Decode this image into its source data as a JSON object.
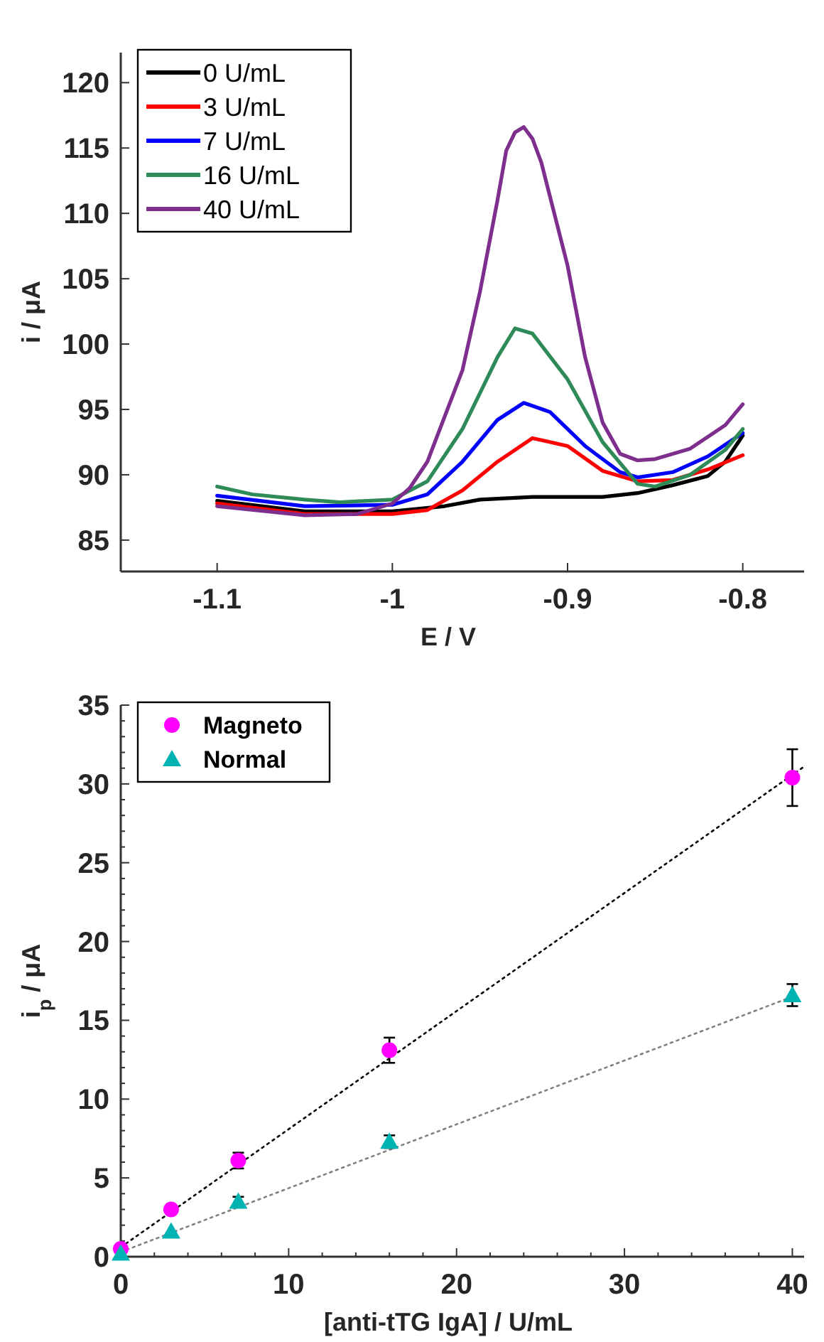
{
  "chart_data": [
    {
      "type": "line",
      "xlabel": "E / V",
      "ylabel": "i / μA",
      "xlim": [
        -1.155,
        -0.765
      ],
      "ylim": [
        82.6,
        122.3
      ],
      "xticks": [
        -1.1,
        -1,
        -0.9,
        -0.8
      ],
      "yticks": [
        85,
        90,
        95,
        100,
        105,
        110,
        115,
        120
      ],
      "legend": "top left",
      "line_style": "solid",
      "grid": false,
      "series": [
        {
          "name": "0 U/mL",
          "color": "#000000",
          "x": [
            -1.1,
            -1.05,
            -1.0,
            -0.97,
            -0.95,
            -0.92,
            -0.9,
            -0.88,
            -0.86,
            -0.84,
            -0.82,
            -0.81,
            -0.8
          ],
          "values": [
            88.0,
            87.2,
            87.2,
            87.6,
            88.1,
            88.3,
            88.3,
            88.3,
            88.6,
            89.2,
            89.9,
            91.0,
            93.0
          ]
        },
        {
          "name": "3 U/mL",
          "color": "#ff0000",
          "x": [
            -1.1,
            -1.05,
            -1.0,
            -0.98,
            -0.96,
            -0.94,
            -0.92,
            -0.9,
            -0.88,
            -0.86,
            -0.84,
            -0.82,
            -0.8
          ],
          "values": [
            87.8,
            87.0,
            87.0,
            87.3,
            88.8,
            91.0,
            92.8,
            92.2,
            90.3,
            89.5,
            89.6,
            90.4,
            91.5
          ]
        },
        {
          "name": "7 U/mL",
          "color": "#0000ff",
          "x": [
            -1.1,
            -1.05,
            -1.0,
            -0.98,
            -0.96,
            -0.94,
            -0.925,
            -0.91,
            -0.89,
            -0.87,
            -0.86,
            -0.84,
            -0.82,
            -0.8
          ],
          "values": [
            88.4,
            87.6,
            87.7,
            88.5,
            91.0,
            94.2,
            95.5,
            94.8,
            92.2,
            90.2,
            89.8,
            90.2,
            91.4,
            93.2
          ]
        },
        {
          "name": "16 U/mL",
          "color": "#2e8b57",
          "x": [
            -1.1,
            -1.08,
            -1.05,
            -1.03,
            -1.0,
            -0.98,
            -0.96,
            -0.94,
            -0.93,
            -0.92,
            -0.9,
            -0.88,
            -0.86,
            -0.85,
            -0.83,
            -0.81,
            -0.8
          ],
          "values": [
            89.1,
            88.5,
            88.1,
            87.9,
            88.1,
            89.5,
            93.5,
            99.0,
            101.2,
            100.8,
            97.3,
            92.5,
            89.3,
            89.1,
            90.0,
            91.9,
            93.5
          ]
        },
        {
          "name": "40 U/mL",
          "color": "#7e2f8e",
          "x": [
            -1.1,
            -1.05,
            -1.02,
            -1.0,
            -0.99,
            -0.98,
            -0.96,
            -0.95,
            -0.94,
            -0.935,
            -0.93,
            -0.925,
            -0.92,
            -0.915,
            -0.9,
            -0.89,
            -0.88,
            -0.87,
            -0.86,
            -0.85,
            -0.83,
            -0.81,
            -0.8
          ],
          "values": [
            87.6,
            86.9,
            87.0,
            87.8,
            89.0,
            91.0,
            98.0,
            104.0,
            111.0,
            114.8,
            116.2,
            116.6,
            115.7,
            113.9,
            106.0,
            99.0,
            94.0,
            91.6,
            91.1,
            91.2,
            92.0,
            93.8,
            95.4
          ]
        }
      ]
    },
    {
      "type": "scatter",
      "xlabel": "[anti-tTG IgA] / U/mL",
      "ylabel": "i$_{p}$ / μA",
      "xlim": [
        0,
        40.7
      ],
      "ylim": [
        0,
        35
      ],
      "xticks": [
        0,
        {
          "value": 2,
          "label": null
        },
        {
          "value": 4,
          "label": null
        },
        {
          "value": 6,
          "label": null
        },
        {
          "value": 8,
          "label": null
        },
        10,
        {
          "value": 12,
          "label": null
        },
        {
          "value": 14,
          "label": null
        },
        {
          "value": 16,
          "label": null
        },
        {
          "value": 18,
          "label": null
        },
        20,
        {
          "value": 22,
          "label": null
        },
        {
          "value": 24,
          "label": null
        },
        {
          "value": 26,
          "label": null
        },
        {
          "value": 28,
          "label": null
        },
        30,
        {
          "value": 32,
          "label": null
        },
        {
          "value": 34,
          "label": null
        },
        {
          "value": 36,
          "label": null
        },
        {
          "value": 38,
          "label": null
        },
        40
      ],
      "yticks": [
        0,
        {
          "value": 1,
          "label": null
        },
        {
          "value": 2,
          "label": null
        },
        {
          "value": 3,
          "label": null
        },
        {
          "value": 4,
          "label": null
        },
        5,
        {
          "value": 6,
          "label": null
        },
        {
          "value": 7,
          "label": null
        },
        {
          "value": 8,
          "label": null
        },
        {
          "value": 9,
          "label": null
        },
        10,
        {
          "value": 11,
          "label": null
        },
        {
          "value": 12,
          "label": null
        },
        {
          "value": 13,
          "label": null
        },
        {
          "value": 14,
          "label": null
        },
        15,
        {
          "value": 16,
          "label": null
        },
        {
          "value": 17,
          "label": null
        },
        {
          "value": 18,
          "label": null
        },
        {
          "value": 19,
          "label": null
        },
        20,
        {
          "value": 21,
          "label": null
        },
        {
          "value": 22,
          "label": null
        },
        {
          "value": 23,
          "label": null
        },
        {
          "value": 24,
          "label": null
        },
        25,
        {
          "value": 26,
          "label": null
        },
        {
          "value": 27,
          "label": null
        },
        {
          "value": 28,
          "label": null
        },
        {
          "value": 29,
          "label": null
        },
        30,
        {
          "value": 31,
          "label": null
        },
        {
          "value": 32,
          "label": null
        },
        {
          "value": 33,
          "label": null
        },
        {
          "value": 34,
          "label": null
        },
        35
      ],
      "legend": "top left",
      "grid": false,
      "series": [
        {
          "type": "line",
          "color": "#000000",
          "line_style": "dotted",
          "x": [
            0,
            40.7
          ],
          "values": [
            0.6,
            31.1
          ]
        },
        {
          "type": "line",
          "color": "#808080",
          "line_style": "dotted",
          "x": [
            0,
            40
          ],
          "values": [
            0.3,
            16.5
          ]
        },
        {
          "name": "Magneto",
          "color": "#ff00ff",
          "marker": "circle",
          "x": [
            0,
            3,
            7,
            16,
            40
          ],
          "values": [
            0.5,
            3.0,
            6.1,
            13.1,
            30.4
          ],
          "errors": [
            null,
            null,
            0.5,
            0.8,
            1.8
          ]
        },
        {
          "name": "Normal",
          "color": "#00b3b3",
          "marker": "triangle",
          "x": [
            0,
            3,
            7,
            16,
            40
          ],
          "values": [
            0.2,
            1.6,
            3.5,
            7.3,
            16.6
          ],
          "errors": [
            null,
            null,
            0.3,
            0.4,
            0.7
          ]
        }
      ]
    }
  ]
}
